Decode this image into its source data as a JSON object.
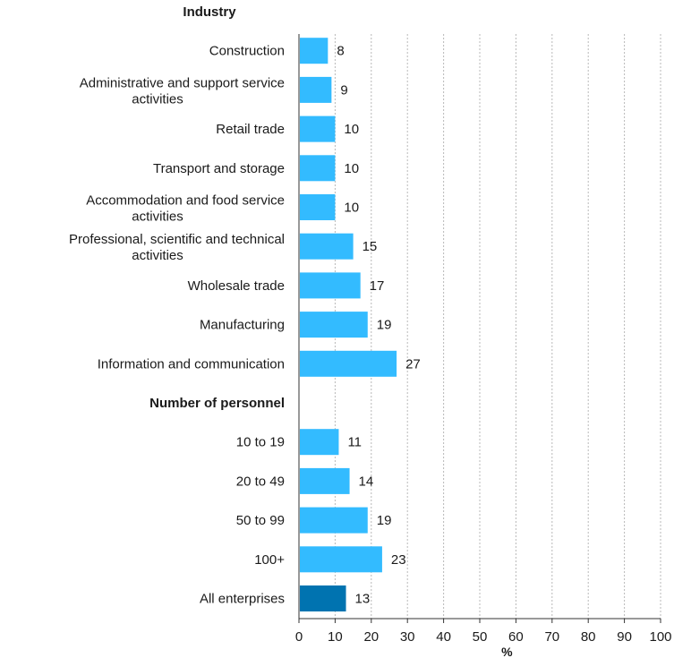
{
  "chart_data": {
    "type": "bar",
    "orientation": "horizontal",
    "xlabel": "%",
    "xlim": [
      0,
      100
    ],
    "xticks": [
      0,
      10,
      20,
      30,
      40,
      50,
      60,
      70,
      80,
      90,
      100
    ],
    "grid": true,
    "rows": [
      {
        "kind": "group",
        "label": "Industry"
      },
      {
        "kind": "bar",
        "label": [
          "Construction"
        ],
        "value": 8
      },
      {
        "kind": "bar",
        "label": [
          "Administrative and support service",
          "activities"
        ],
        "value": 9
      },
      {
        "kind": "bar",
        "label": [
          "Retail trade"
        ],
        "value": 10
      },
      {
        "kind": "bar",
        "label": [
          "Transport and storage"
        ],
        "value": 10
      },
      {
        "kind": "bar",
        "label": [
          "Accommodation and food service",
          "activities"
        ],
        "value": 10
      },
      {
        "kind": "bar",
        "label": [
          "Professional, scientific and technical",
          "activities"
        ],
        "value": 15
      },
      {
        "kind": "bar",
        "label": [
          "Wholesale trade"
        ],
        "value": 17
      },
      {
        "kind": "bar",
        "label": [
          "Manufacturing"
        ],
        "value": 19
      },
      {
        "kind": "bar",
        "label": [
          "Information and communication"
        ],
        "value": 27
      },
      {
        "kind": "group",
        "label": "Number of personnel"
      },
      {
        "kind": "bar",
        "label": [
          "10 to 19"
        ],
        "value": 11
      },
      {
        "kind": "bar",
        "label": [
          "20 to 49"
        ],
        "value": 14
      },
      {
        "kind": "bar",
        "label": [
          "50 to 99"
        ],
        "value": 19
      },
      {
        "kind": "bar",
        "label": [
          "100+"
        ],
        "value": 23
      },
      {
        "kind": "bar",
        "label": [
          "All enterprises"
        ],
        "value": 13,
        "highlight": true
      }
    ],
    "colors": {
      "bar": "#33bbff",
      "highlight": "#0073b0"
    }
  }
}
